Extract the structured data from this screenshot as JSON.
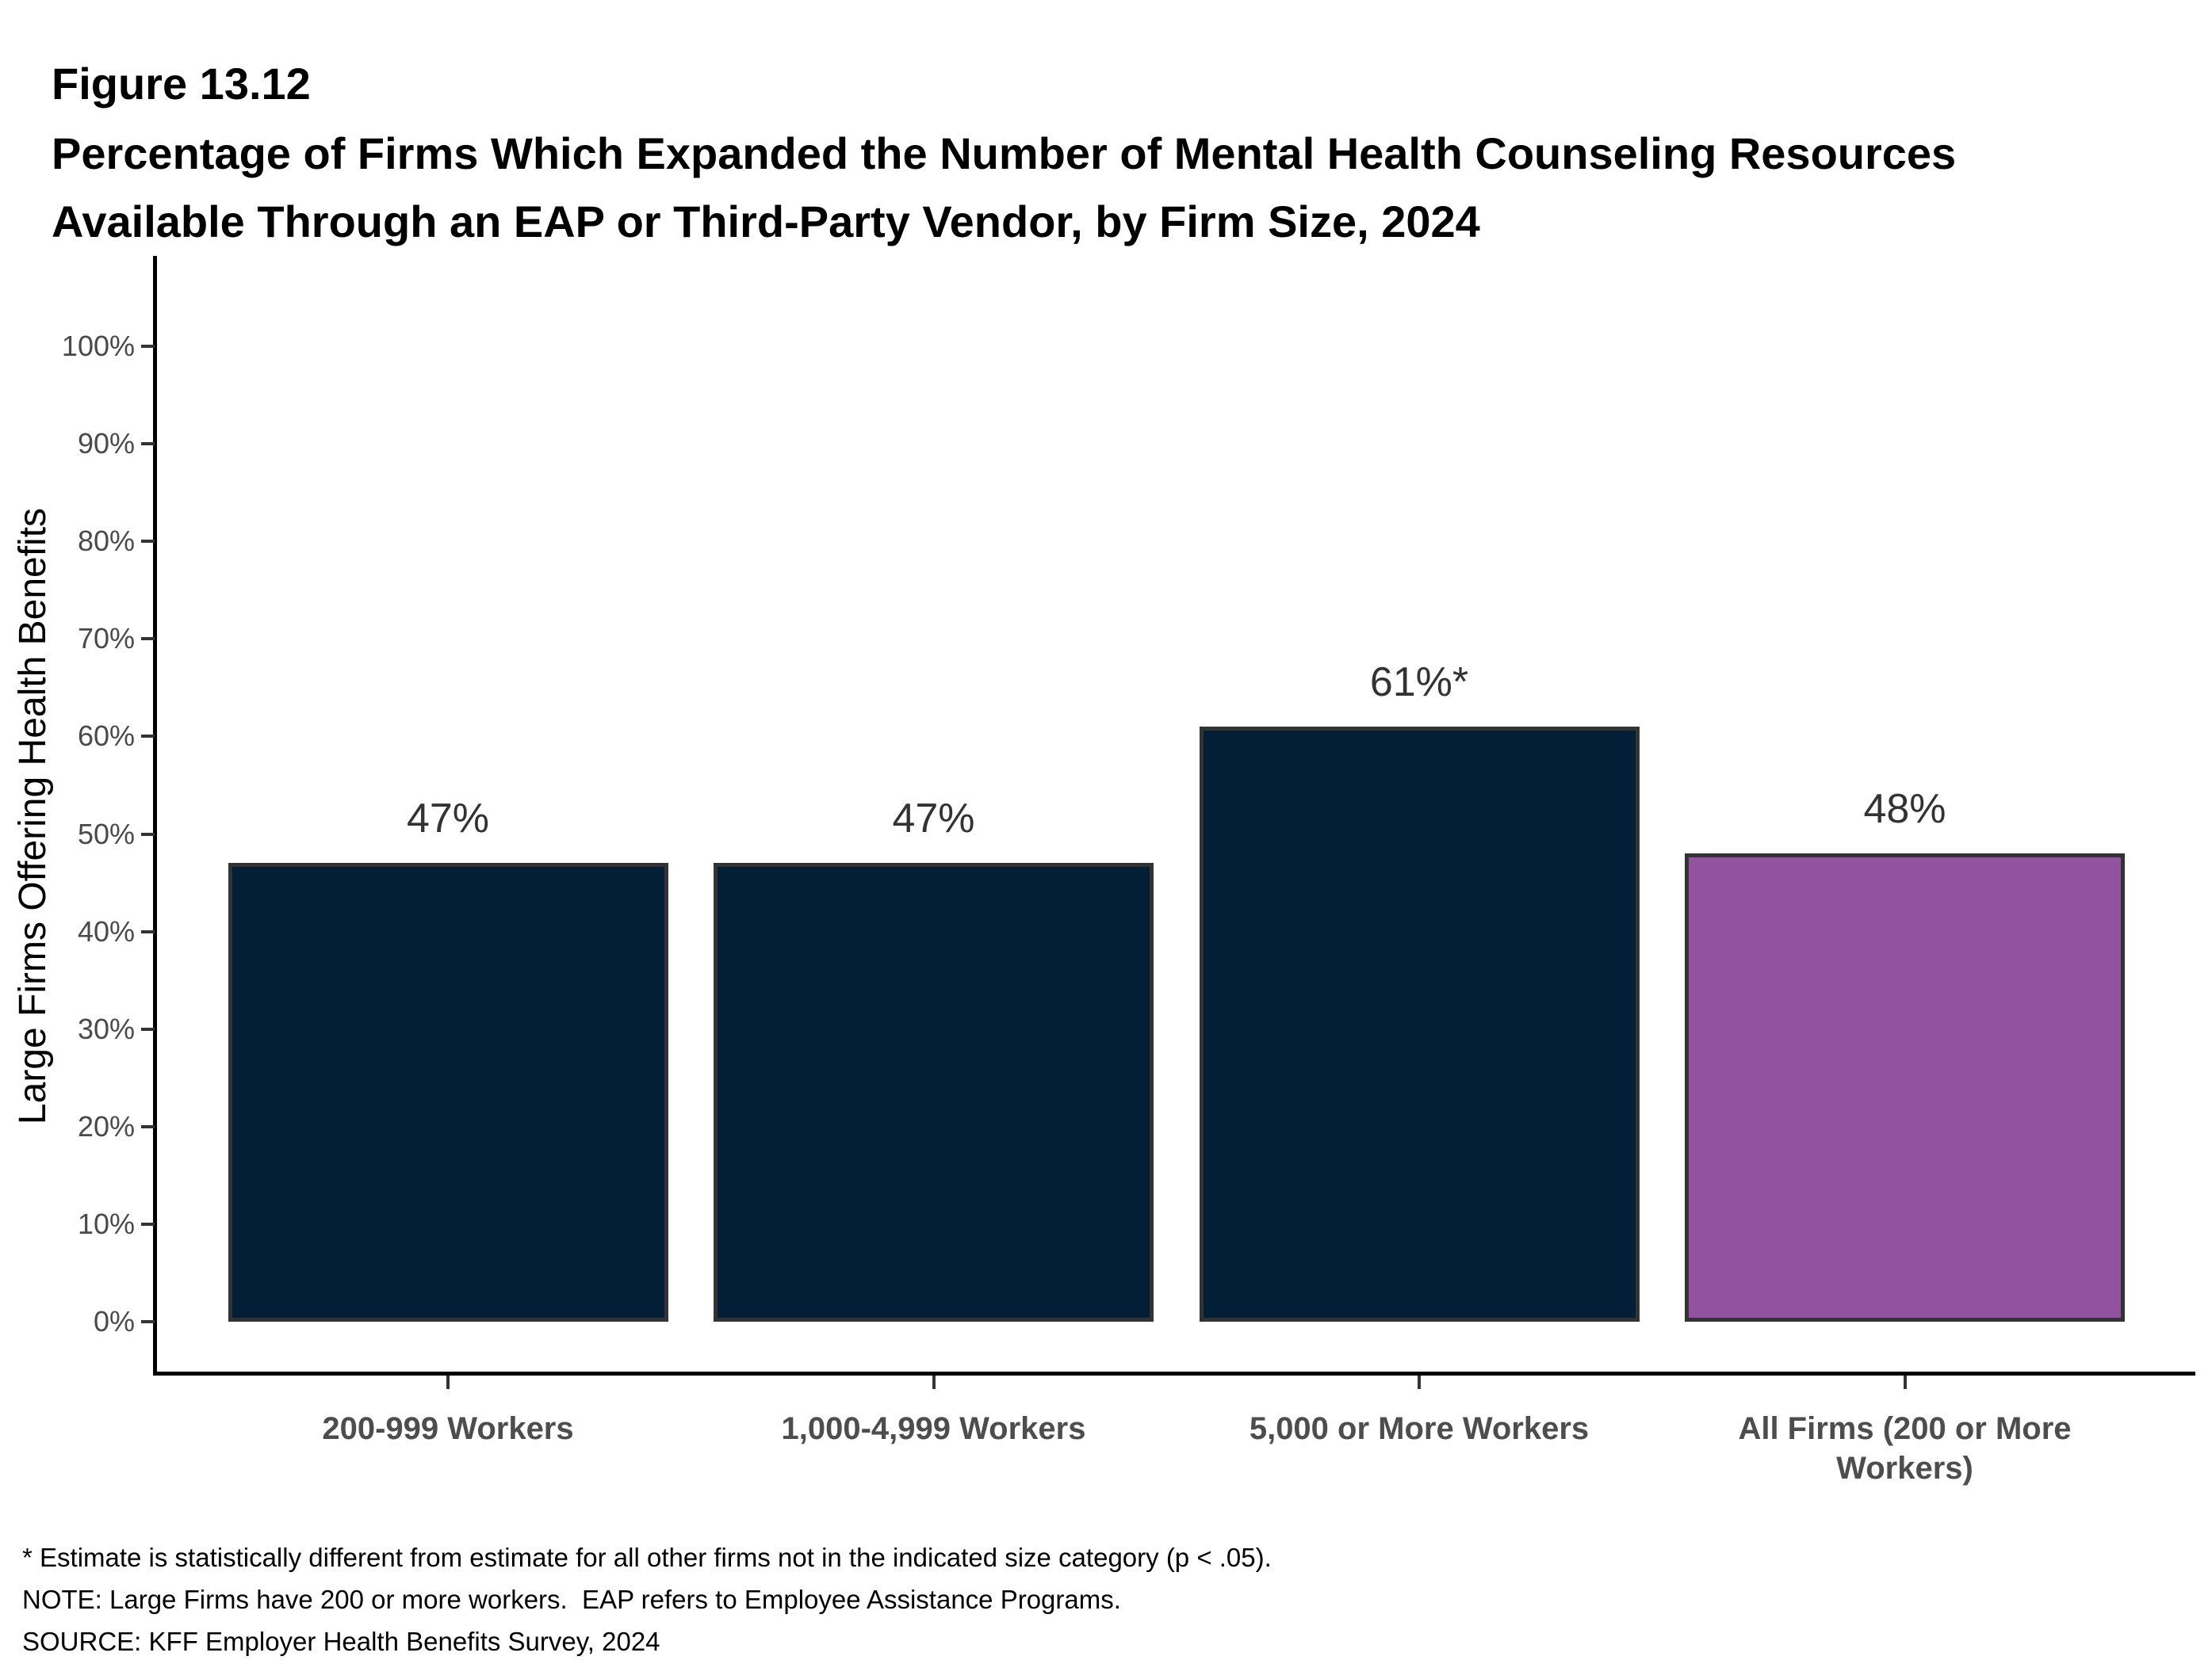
{
  "header": {
    "figure_label": "Figure 13.12",
    "title_line1": "Percentage of Firms Which Expanded the Number of Mental Health Counseling Resources",
    "title_line2": "Available Through an EAP or Third-Party Vendor, by Firm Size, 2024"
  },
  "chart_data": {
    "type": "bar",
    "title": "Percentage of Firms Which Expanded the Number of Mental Health Counseling Resources Available Through an EAP or Third-Party Vendor, by Firm Size, 2024",
    "categories": [
      "200-999 Workers",
      "1,000-4,999 Workers",
      "5,000 or More Workers",
      "All Firms (200 or More Workers)"
    ],
    "values": [
      47,
      47,
      61,
      48
    ],
    "bar_labels": [
      "47%",
      "47%",
      "61%*",
      "48%"
    ],
    "bar_colors": [
      "#031F37",
      "#031F37",
      "#031F37",
      "#9252A0"
    ],
    "xlabel": "",
    "ylabel": "Large Firms Offering Health Benefits",
    "ylim": [
      0,
      100
    ],
    "ytick_labels": [
      "0%",
      "10%",
      "20%",
      "30%",
      "40%",
      "50%",
      "60%",
      "70%",
      "80%",
      "90%",
      "100%"
    ],
    "grid": false,
    "legend_position": "none"
  },
  "colors": {
    "bar_navy": "#031F37",
    "bar_purple": "#9252A0",
    "bar_border": "#333333",
    "axis_line": "#000000",
    "tick_label": "#4A4A4A",
    "category_label": "#4D4D4D",
    "data_label": "#333333"
  },
  "footnotes": {
    "star_note": "* Estimate is statistically different from estimate for all other firms not in the indicated size category (p < .05).",
    "note": "NOTE: Large Firms have 200 or more workers.  EAP refers to Employee Assistance Programs.",
    "source": "SOURCE: KFF Employer Health Benefits Survey, 2024"
  }
}
